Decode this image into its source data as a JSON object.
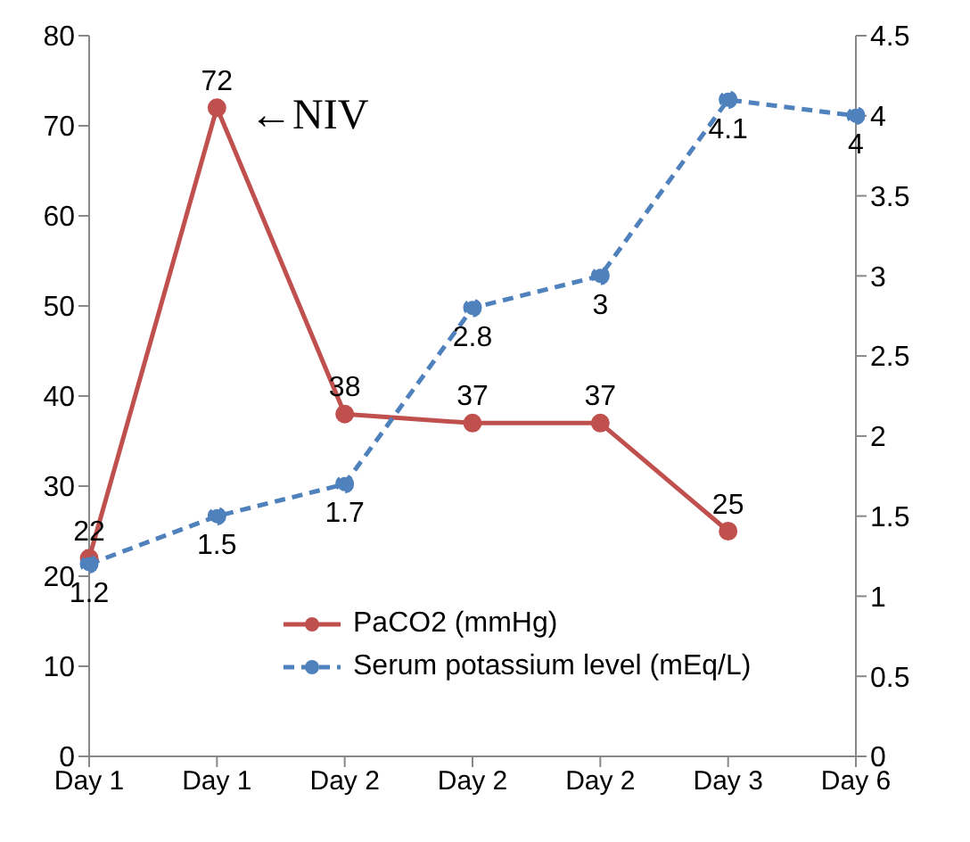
{
  "chart_data": {
    "type": "line",
    "categories": [
      "Day 1",
      "Day 1",
      "Day 2",
      "Day 2",
      "Day 2",
      "Day 3",
      "Day 6"
    ],
    "series": [
      {
        "name": "PaCO2 (mmHg)",
        "color": "#c0504d",
        "values": [
          22,
          72,
          38,
          37,
          37,
          25,
          null
        ],
        "line_style": "solid"
      },
      {
        "name": "Serum potassium level (mEq/L)",
        "color": "#4f81bd",
        "values": [
          1.2,
          1.5,
          1.7,
          2.8,
          3,
          4.1,
          4
        ],
        "axis": "y2",
        "line_style": "dashed"
      }
    ],
    "ylim": [
      0,
      80
    ],
    "yticks": [
      0,
      10,
      20,
      30,
      40,
      50,
      60,
      70,
      80
    ],
    "y2lim": [
      0,
      4.5
    ],
    "y2ticks": [
      0,
      0.5,
      1,
      1.5,
      2,
      2.5,
      3,
      3.5,
      4,
      4.5
    ],
    "annotations": [
      "←NIV"
    ],
    "data_labels": true,
    "marker": "circle",
    "grid": false,
    "legend": "bottom right"
  }
}
